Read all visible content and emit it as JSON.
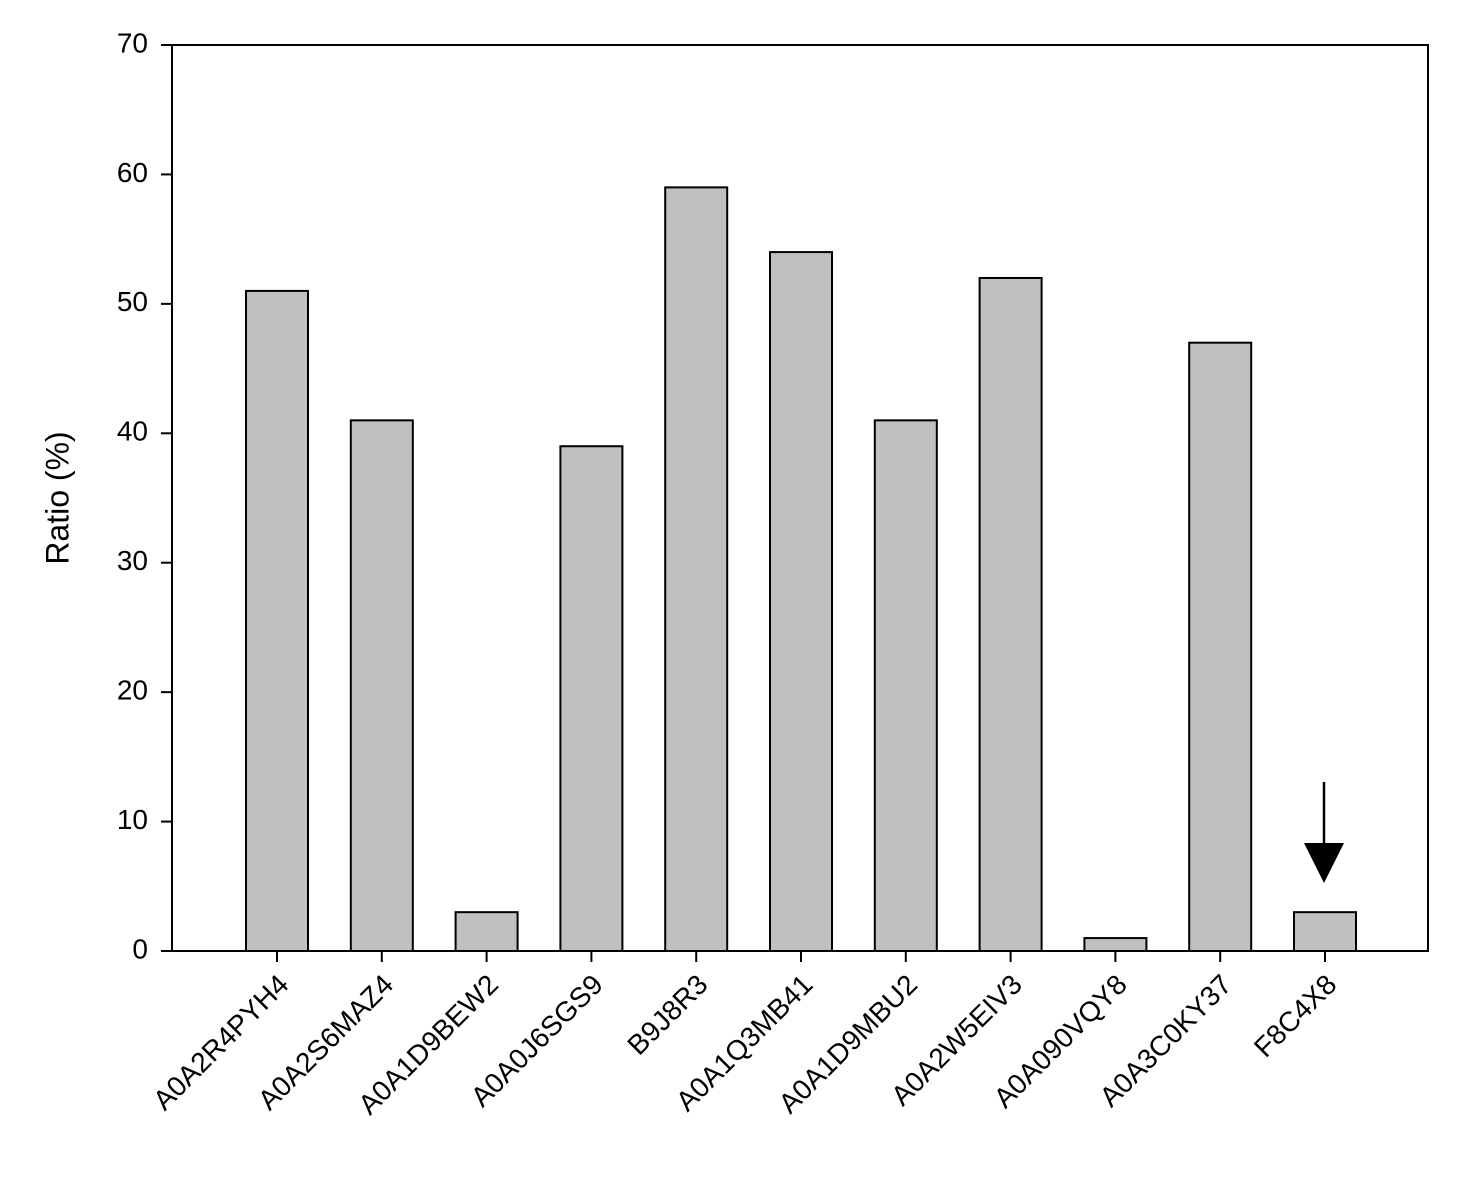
{
  "chart_data": {
    "type": "bar",
    "title": "",
    "xlabel": "",
    "ylabel": "Ratio (%)",
    "categories": [
      "A0A2R4PYH4",
      "A0A2S6MAZ4",
      "A0A1D9BEW2",
      "A0A0J6SGS9",
      "B9J8R3",
      "A0A1Q3MB41",
      "A0A1D9MBU2",
      "A0A2W5EIV3",
      "A0A090VQY8",
      "A0A3C0KY37",
      "F8C4X8"
    ],
    "values": [
      51,
      41,
      3,
      39,
      59,
      54,
      41,
      52,
      1,
      47,
      3
    ],
    "ylim": [
      0,
      70
    ],
    "yticks": [
      "0",
      "10",
      "20",
      "30",
      "40",
      "50",
      "60",
      "70"
    ],
    "grid": false,
    "highlighted_category": "F8C4X8",
    "bar_color": "#c0c0c0",
    "bar_edge_color": "#000000"
  }
}
